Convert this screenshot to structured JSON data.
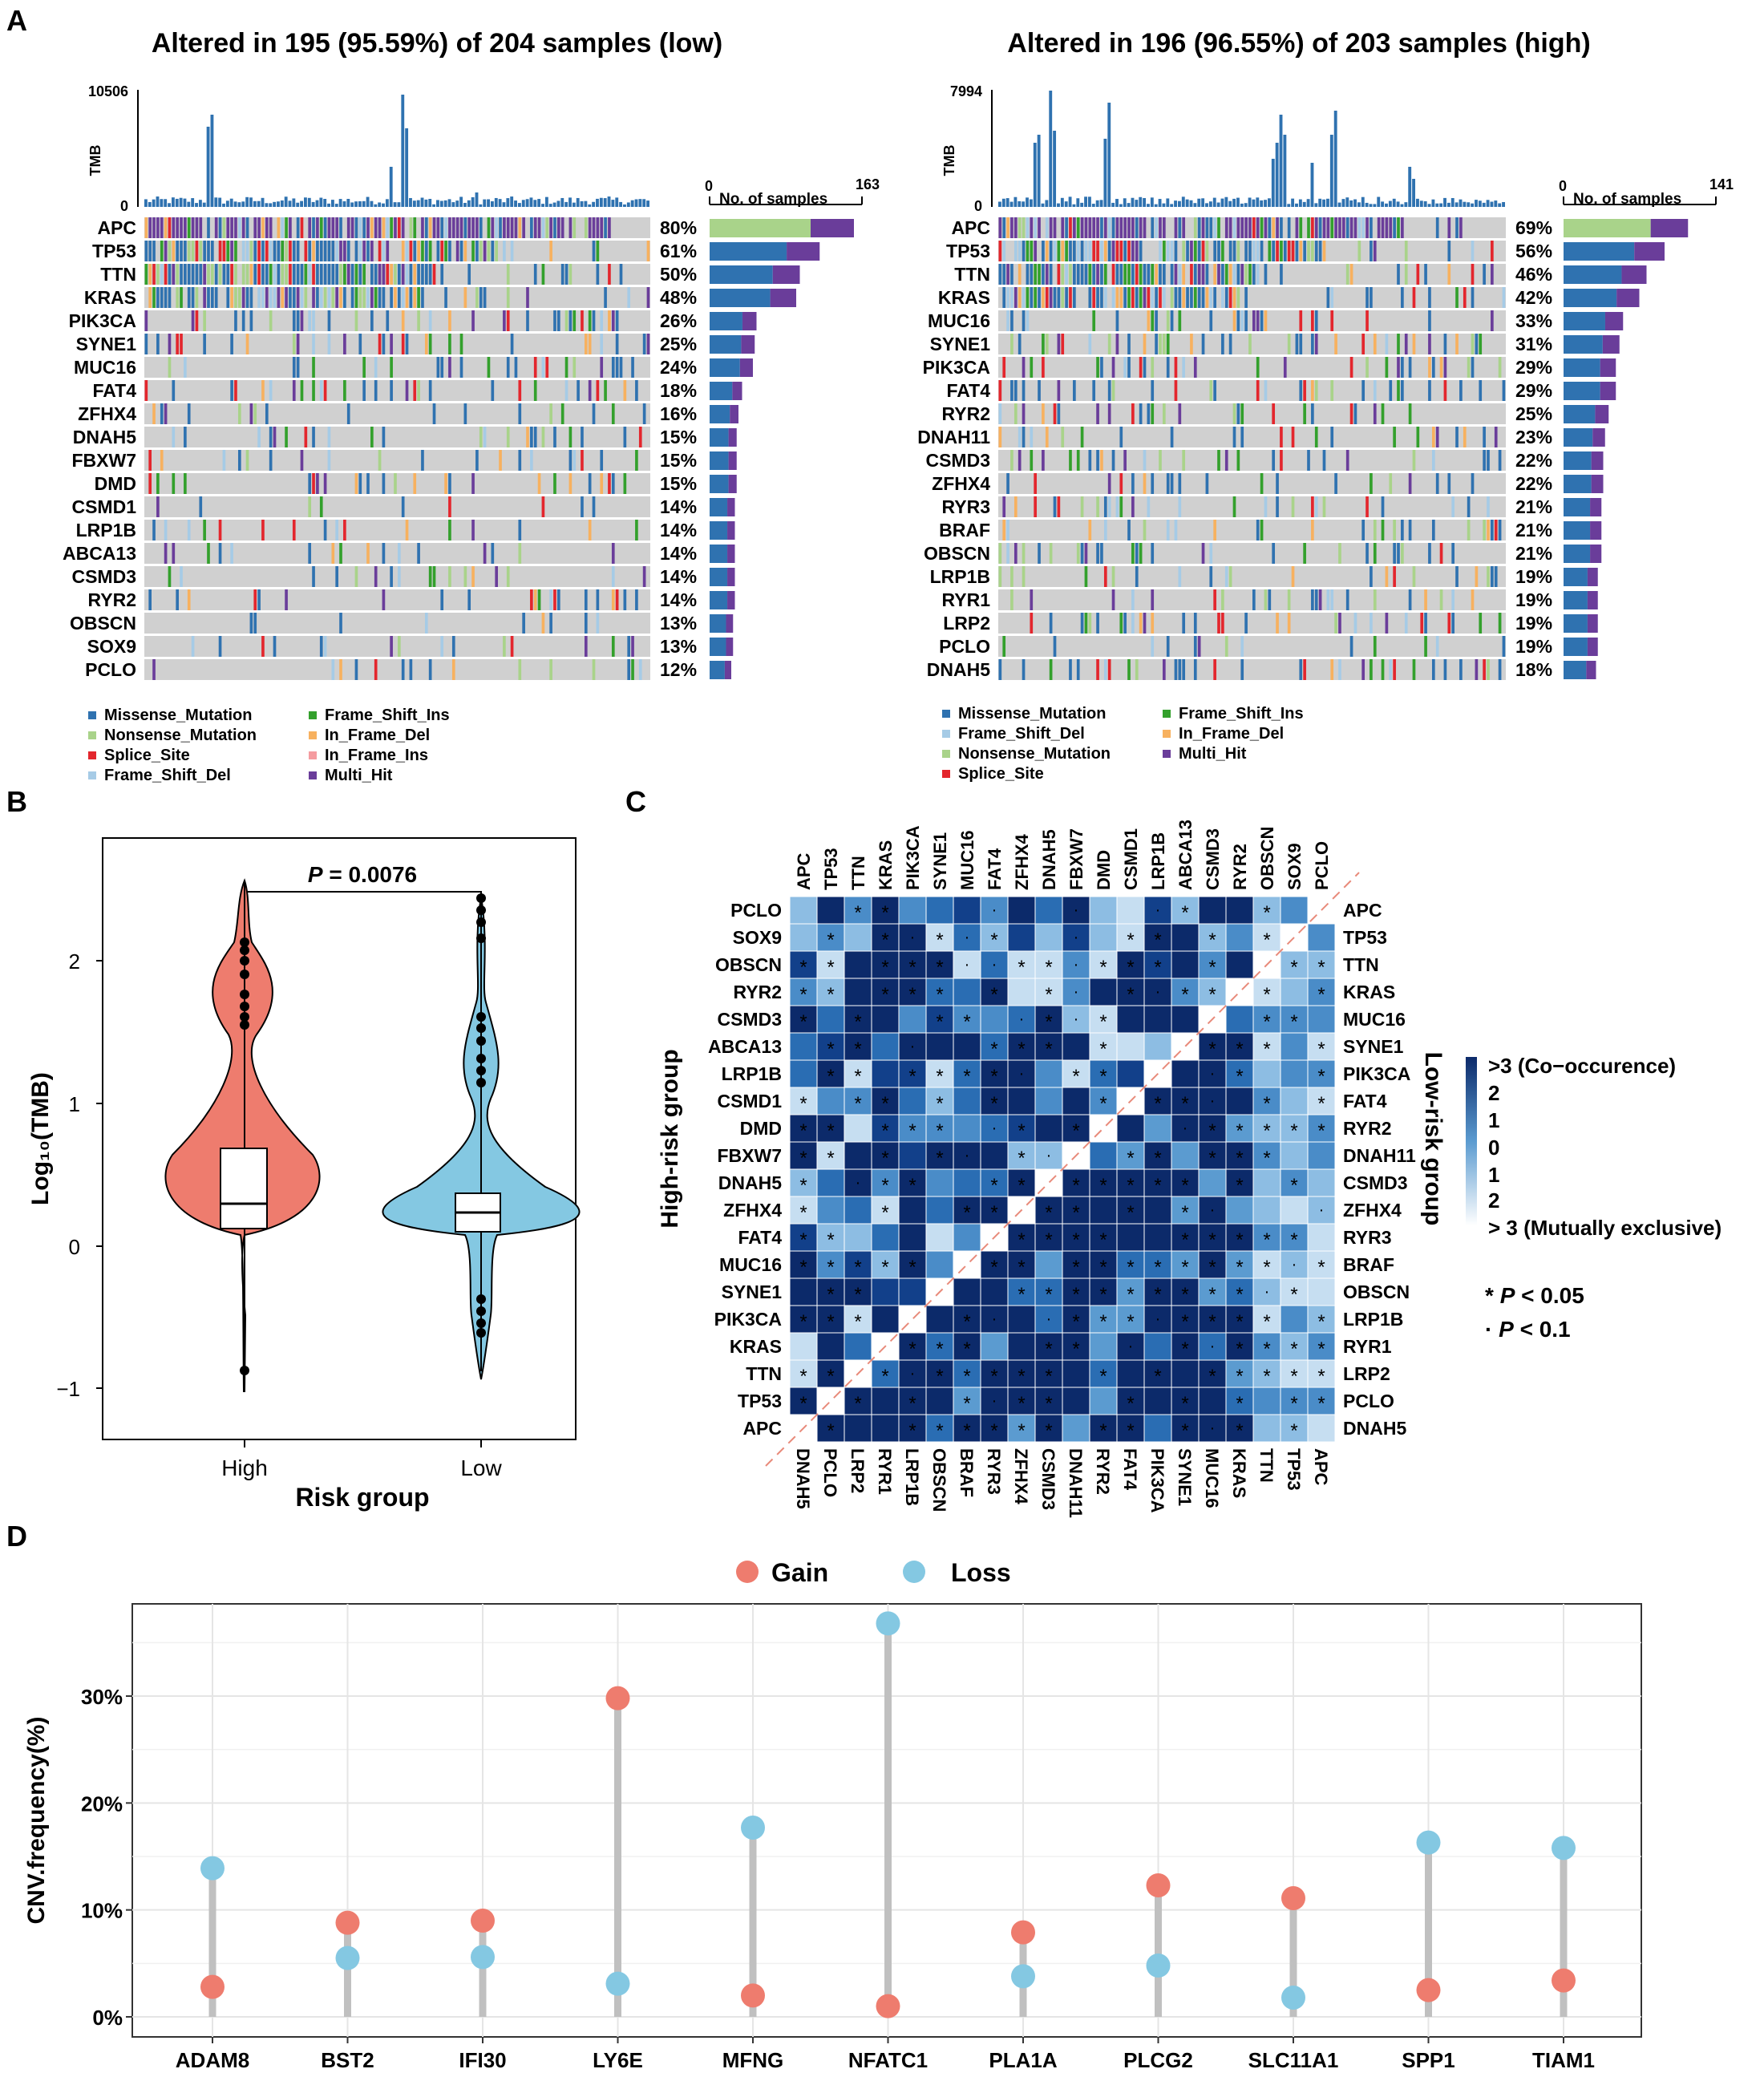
{
  "figure": {
    "panel_labels": [
      "A",
      "B",
      "C",
      "D"
    ]
  },
  "colors": {
    "missense": "#2f72b0",
    "nonsense": "#a9d38a",
    "splice": "#e3262d",
    "frame_shift_del": "#a6cbe6",
    "frame_shift_ins": "#33a02c",
    "in_frame_del": "#f7b15f",
    "in_frame_ins": "#f59ca0",
    "multi_hit": "#6a3d9a",
    "empty": "#d0d0d0",
    "violin_high": "#ee7c6e",
    "violin_low": "#84c8e2",
    "gain": "#ee7c6e",
    "loss": "#84c8e2",
    "stem": "#c0c0c0",
    "dark_blue": "#0c2a6a",
    "mid_blue": "#3a84c4",
    "diag": "#e88a7a"
  },
  "panelA": {
    "low": {
      "title": "Altered in 195 (95.59%) of 204 samples (low)",
      "tmb_label": "TMB",
      "tmb_max": "10506",
      "tmb_min": "0",
      "bar_axis_min": "0",
      "bar_axis_max": "163",
      "bar_axis_label": "No. of samples",
      "genes": [
        "APC",
        "TP53",
        "TTN",
        "KRAS",
        "PIK3CA",
        "SYNE1",
        "MUC16",
        "FAT4",
        "ZFHX4",
        "DNAH5",
        "FBXW7",
        "DMD",
        "CSMD1",
        "LRP1B",
        "ABCA13",
        "CSMD3",
        "RYR2",
        "OBSCN",
        "SOX9",
        "PCLO"
      ],
      "percents": [
        "80%",
        "61%",
        "50%",
        "48%",
        "26%",
        "25%",
        "24%",
        "18%",
        "16%",
        "15%",
        "15%",
        "15%",
        "14%",
        "14%",
        "14%",
        "14%",
        "14%",
        "13%",
        "13%",
        "12%"
      ],
      "legend": [
        "Missense_Mutation",
        "Frame_Shift_Ins",
        "Nonsense_Mutation",
        "In_Frame_Del",
        "Splice_Site",
        "In_Frame_Ins",
        "Frame_Shift_Del",
        "Multi_Hit"
      ]
    },
    "high": {
      "title": "Altered in 196 (96.55%) of 203 samples (high)",
      "tmb_label": "TMB",
      "tmb_max": "7994",
      "tmb_min": "0",
      "bar_axis_min": "0",
      "bar_axis_max": "141",
      "bar_axis_label": "No. of samples",
      "genes": [
        "APC",
        "TP53",
        "TTN",
        "KRAS",
        "MUC16",
        "SYNE1",
        "PIK3CA",
        "FAT4",
        "RYR2",
        "DNAH11",
        "CSMD3",
        "ZFHX4",
        "RYR3",
        "BRAF",
        "OBSCN",
        "LRP1B",
        "RYR1",
        "LRP2",
        "PCLO",
        "DNAH5"
      ],
      "percents": [
        "69%",
        "56%",
        "46%",
        "42%",
        "33%",
        "31%",
        "29%",
        "29%",
        "25%",
        "23%",
        "22%",
        "22%",
        "21%",
        "21%",
        "21%",
        "19%",
        "19%",
        "19%",
        "19%",
        "18%"
      ],
      "legend": [
        "Missense_Mutation",
        "Frame_Shift_Ins",
        "Frame_Shift_Del",
        "In_Frame_Del",
        "Nonsense_Mutation",
        "Multi_Hit",
        "Splice_Site"
      ]
    }
  },
  "panelB": {
    "p_label": "P",
    "p_value": " = 0.0076",
    "y_axis_label": "Log₁₀(TMB)",
    "x_axis_label": "Risk group",
    "y_ticks": [
      "−1",
      "0",
      "1",
      "2"
    ],
    "groups": [
      "High",
      "Low"
    ]
  },
  "panelC": {
    "top_genes": [
      "APC",
      "TP53",
      "TTN",
      "KRAS",
      "PIK3CA",
      "SYNE1",
      "MUC16",
      "FAT4",
      "ZFHX4",
      "DNAH5",
      "FBXW7",
      "DMD",
      "CSMD1",
      "LRP1B",
      "ABCA13",
      "CSMD3",
      "RYR2",
      "OBSCN",
      "SOX9",
      "PCLO"
    ],
    "left_genes": [
      "PCLO",
      "SOX9",
      "OBSCN",
      "RYR2",
      "CSMD3",
      "ABCA13",
      "LRP1B",
      "CSMD1",
      "DMD",
      "FBXW7",
      "DNAH5",
      "ZFHX4",
      "FAT4",
      "MUC16",
      "SYNE1",
      "PIK3CA",
      "KRAS",
      "TTN",
      "TP53",
      "APC"
    ],
    "right_genes": [
      "APC",
      "TP53",
      "TTN",
      "KRAS",
      "MUC16",
      "SYNE1",
      "PIK3CA",
      "FAT4",
      "RYR2",
      "DNAH11",
      "CSMD3",
      "ZFHX4",
      "RYR3",
      "BRAF",
      "OBSCN",
      "LRP1B",
      "RYR1",
      "LRP2",
      "PCLO",
      "DNAH5"
    ],
    "bottom_genes": [
      "DNAH5",
      "PCLO",
      "LRP2",
      "RYR1",
      "LRP1B",
      "OBSCN",
      "BRAF",
      "RYR3",
      "ZFHX4",
      "CSMD3",
      "DNAH11",
      "RYR2",
      "FAT4",
      "PIK3CA",
      "SYNE1",
      "MUC16",
      "KRAS",
      "TTN",
      "TP53",
      "APC"
    ],
    "left_group_label": "High-risk group",
    "right_group_label": "Low-risk group",
    "scale_labels": [
      ">3 (Co−occurence)",
      "2",
      "1",
      "0",
      "1",
      "2",
      "> 3 (Mutually exclusive)"
    ],
    "sig_star": "* P < 0.05",
    "sig_dot": "· P < 0.1",
    "sig_star_sym": "*",
    "sig_star_text": " < 0.05",
    "sig_dot_sym": "·",
    "sig_dot_text": " < 0.1",
    "p": "P"
  },
  "chart_data": {
    "type": "scatter",
    "subtype": "lollipop",
    "title": "",
    "xlabel": "",
    "ylabel": "CNV.frequency(%)",
    "ylim": [
      0,
      38
    ],
    "y_ticks": [
      "0%",
      "10%",
      "20%",
      "30%"
    ],
    "legend": [
      "Gain",
      "Loss"
    ],
    "categories": [
      "ADAM8",
      "BST2",
      "IFI30",
      "LY6E",
      "MFNG",
      "NFATC1",
      "PLA1A",
      "PLCG2",
      "SLC11A1",
      "SPP1",
      "TIAM1"
    ],
    "series": [
      {
        "name": "Gain",
        "values": [
          2.8,
          8.8,
          9.0,
          29.8,
          2.0,
          1.0,
          7.9,
          12.3,
          11.1,
          2.5,
          3.4
        ]
      },
      {
        "name": "Loss",
        "values": [
          13.9,
          5.5,
          5.6,
          3.1,
          17.7,
          36.8,
          3.8,
          4.8,
          1.8,
          16.3,
          15.8
        ]
      }
    ]
  }
}
